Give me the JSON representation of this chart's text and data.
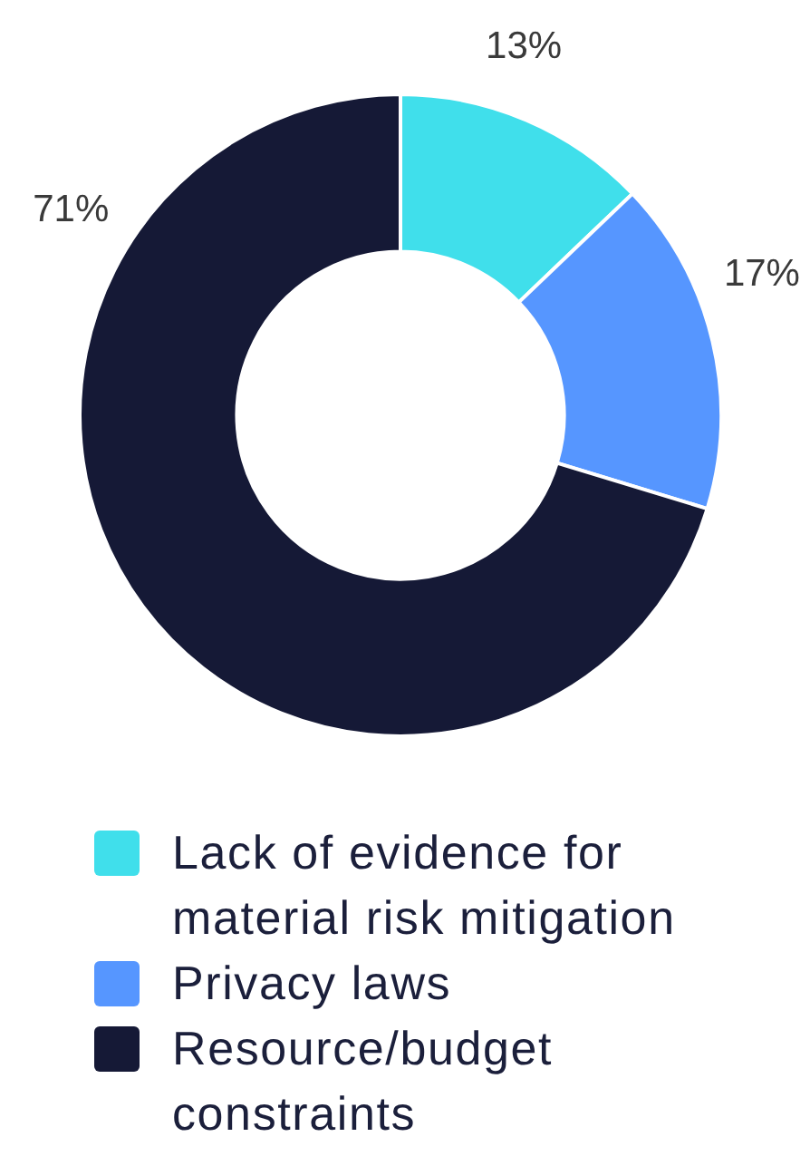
{
  "chart_data": {
    "type": "donut",
    "categories": [
      "Lack of evidence for material risk mitigation",
      "Privacy laws",
      "Resource/budget constraints"
    ],
    "values": [
      13,
      17,
      71
    ],
    "colors": [
      "#40dfeb",
      "#5696ff",
      "#151936"
    ],
    "value_labels": [
      "13%",
      "17%",
      "71%"
    ],
    "legend": "bottom"
  }
}
